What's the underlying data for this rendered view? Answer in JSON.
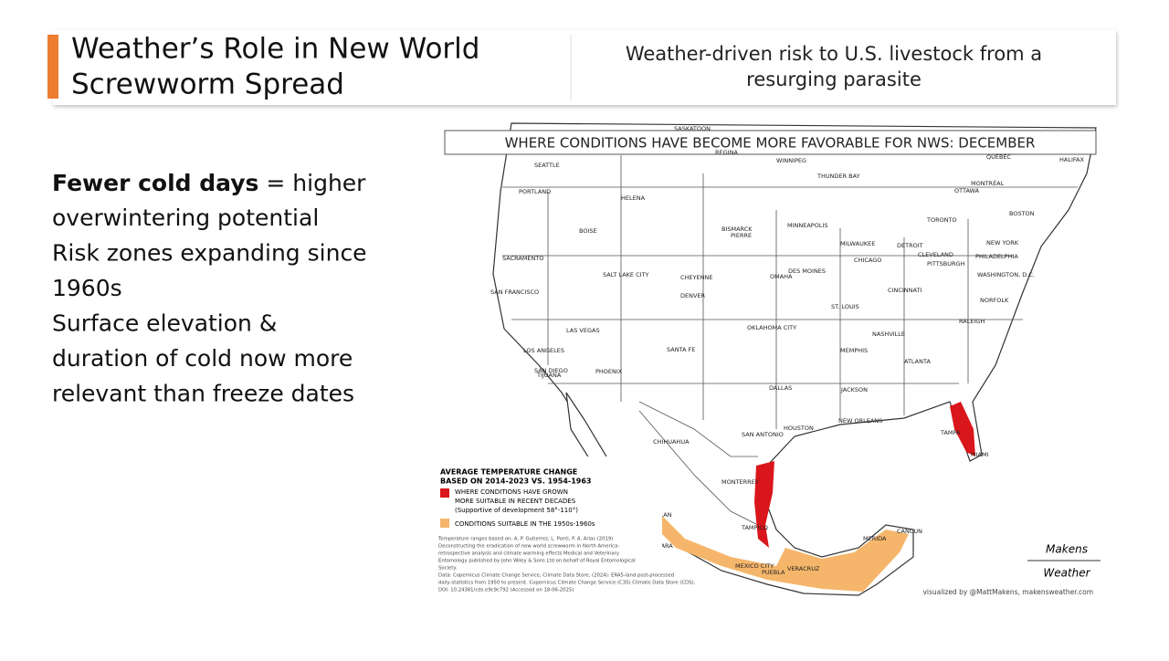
{
  "header": {
    "title_lines": [
      "Weather’s Role in New World",
      "Screwworm Spread"
    ],
    "subtitle_lines": [
      "Weather-driven risk to U.S. livestock from a",
      "resurging parasite"
    ]
  },
  "bullets": {
    "first_bold": "Fewer cold days",
    "first_rest": " = higher",
    "lines": [
      "overwintering potential",
      "Risk zones expanding since",
      "1960s",
      "Surface elevation &",
      "duration of cold now more",
      "relevant than freeze dates"
    ]
  },
  "map": {
    "title": "WHERE CONDITIONS HAVE BECOME MORE FAVORABLE FOR NWS: DECEMBER",
    "cities": [
      "SEATTLE",
      "PORTLAND",
      "HELENA",
      "BOISE",
      "BISMARCK",
      "PIERRE",
      "WINNIPEG",
      "THUNDER BAY",
      "MINNEAPOLIS",
      "SACRAMENTO",
      "SAN FRANCISCO",
      "SALT LAKE CITY",
      "CHEYENNE",
      "DENVER",
      "DES MOINES",
      "OMAHA",
      "MILWAUKEE",
      "CHICAGO",
      "DETROIT",
      "TORONTO",
      "OTTAWA",
      "MONTRÉAL",
      "QUEBEC",
      "HALIFAX",
      "BOSTON",
      "NEW YORK",
      "PHILADELPHIA",
      "CLEVELAND",
      "PITTSBURGH",
      "WASHINGTON, D.C.",
      "NORFOLK",
      "CINCINNATI",
      "ST. LOUIS",
      "RALEIGH",
      "NASHVILLE",
      "LAS VEGAS",
      "LOS ANGELES",
      "SAN DIEGO",
      "TIJUANA",
      "PHOENIX",
      "SANTA FE",
      "OKLAHOMA CITY",
      "MEMPHIS",
      "ATLANTA",
      "DALLAS",
      "JACKSON",
      "NEW ORLEANS",
      "HOUSTON",
      "SAN ANTONIO",
      "TAMPA",
      "MIAMI",
      "CHIHUAHUA",
      "MONTERREY",
      "TAMPICO",
      "MAZATLAN",
      "GUADALAJARA",
      "MEXICO CITY",
      "PUEBLA",
      "VERACRUZ",
      "MERIDA",
      "CANCUN",
      "REGINA",
      "SASKATOON"
    ],
    "legend": {
      "title_lines": [
        "AVERAGE TEMPERATURE CHANGE",
        "BASED ON 2014-2023 VS. 1954-1963"
      ],
      "red_lines": [
        "WHERE CONDITIONS HAVE GROWN",
        "MORE SUITABLE IN RECENT DECADES",
        "(Supportive of development 58°-110°)"
      ],
      "orange": "CONDITIONS SUITABLE IN THE 1950s-1960s"
    },
    "credits": [
      "Temperature ranges based on: A. P. Gutierrez, L. Ponti, P. A. Arias (2019)",
      "Deconstructing the eradication of new world screwworm in North America:",
      "retrospective analysis and climate warming effects Medical and Veterinary",
      "Entomology published by John Wiley & Sons Ltd on behalf of Royal Entomological",
      "Society.",
      "Data: Copernicus Climate Change Service, Climate Data Store, (2024): ERA5-land post-processed",
      "daily-statistics from 1950 to present. Copernicus Climate Change Service (C3S) Climate Data Store (CDS),",
      "DOI: 10.24381/cds.e9c9c792 (Accessed on 18-06-2025)"
    ],
    "logo": [
      "Makens",
      "Weather"
    ],
    "visualized": "visualized by @MattMakens, makensweather.com"
  }
}
